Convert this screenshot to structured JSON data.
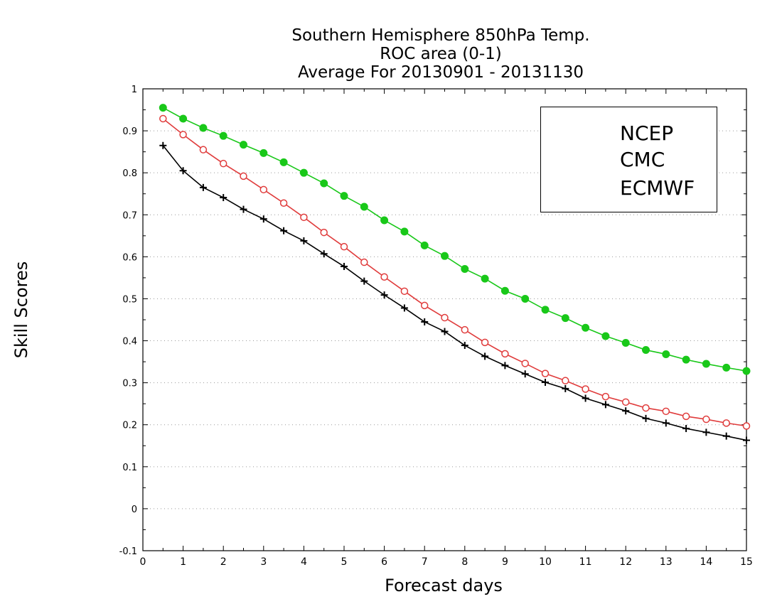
{
  "chart_data": {
    "type": "line",
    "title": [
      "Southern Hemisphere 850hPa Temp.",
      "ROC area (0-1)",
      "Average For 20130901 - 20131130"
    ],
    "xlabel": "Forecast days",
    "ylabel": "Skill Scores",
    "xlim": [
      0,
      15
    ],
    "ylim": [
      -0.1,
      1
    ],
    "xticks": [
      "0",
      "1",
      "2",
      "3",
      "4",
      "5",
      "6",
      "7",
      "8",
      "9",
      "10",
      "11",
      "12",
      "13",
      "14",
      "15"
    ],
    "yticks": [
      "-0.1",
      "0",
      "0.1",
      "0.2",
      "0.3",
      "0.4",
      "0.5",
      "0.6",
      "0.7",
      "0.8",
      "0.9",
      "1"
    ],
    "grid": "dotted horizontal",
    "legend_position": "top-right",
    "x": [
      0.5,
      1,
      1.5,
      2,
      2.5,
      3,
      3.5,
      4,
      4.5,
      5,
      5.5,
      6,
      6.5,
      7,
      7.5,
      8,
      8.5,
      9,
      9.5,
      10,
      10.5,
      11,
      11.5,
      12,
      12.5,
      13,
      13.5,
      14,
      14.5,
      15
    ],
    "series": [
      {
        "name": "NCEP",
        "color": "#000000",
        "marker": "plus",
        "values": [
          0.865,
          0.805,
          0.765,
          0.741,
          0.713,
          0.69,
          0.662,
          0.638,
          0.607,
          0.577,
          0.542,
          0.509,
          0.478,
          0.445,
          0.422,
          0.389,
          0.363,
          0.341,
          0.321,
          0.301,
          0.286,
          0.263,
          0.248,
          0.233,
          0.215,
          0.204,
          0.191,
          0.182,
          0.173,
          0.163
        ]
      },
      {
        "name": "CMC",
        "color": "#e03c3c",
        "marker": "open-circle",
        "values": [
          0.929,
          0.891,
          0.855,
          0.822,
          0.792,
          0.76,
          0.728,
          0.694,
          0.658,
          0.624,
          0.587,
          0.552,
          0.518,
          0.484,
          0.455,
          0.426,
          0.396,
          0.369,
          0.346,
          0.322,
          0.305,
          0.285,
          0.267,
          0.254,
          0.24,
          0.232,
          0.22,
          0.213,
          0.204,
          0.197
        ]
      },
      {
        "name": "ECMWF",
        "color": "#19c819",
        "marker": "filled-circle",
        "values": [
          0.955,
          0.929,
          0.907,
          0.888,
          0.867,
          0.847,
          0.825,
          0.8,
          0.775,
          0.745,
          0.719,
          0.687,
          0.66,
          0.627,
          0.602,
          0.571,
          0.548,
          0.519,
          0.5,
          0.474,
          0.454,
          0.431,
          0.411,
          0.395,
          0.378,
          0.368,
          0.355,
          0.345,
          0.336,
          0.328
        ]
      }
    ]
  }
}
